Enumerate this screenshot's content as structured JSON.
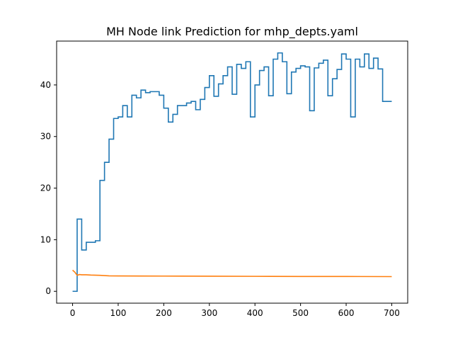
{
  "chart_data": {
    "type": "line",
    "title": "MH Node link Prediction for mhp_depts.yaml",
    "xlabel": "",
    "ylabel": "",
    "xlim": [
      -35,
      735
    ],
    "ylim": [
      -2.3,
      48.5
    ],
    "xticks": [
      0,
      100,
      200,
      300,
      400,
      500,
      600,
      700
    ],
    "yticks": [
      0,
      10,
      20,
      30,
      40
    ],
    "grid": false,
    "legend": "none",
    "series": [
      {
        "color": "#1f77b4",
        "step": "post",
        "x": [
          0,
          8,
          10,
          20,
          30,
          50,
          60,
          70,
          80,
          90,
          100,
          110,
          120,
          130,
          140,
          150,
          160,
          170,
          190,
          200,
          210,
          220,
          230,
          250,
          260,
          270,
          280,
          290,
          300,
          310,
          320,
          330,
          340,
          350,
          360,
          370,
          380,
          390,
          400,
          410,
          420,
          430,
          440,
          450,
          460,
          470,
          480,
          490,
          500,
          510,
          520,
          530,
          540,
          550,
          560,
          570,
          580,
          590,
          600,
          610,
          620,
          630,
          640,
          650,
          660,
          670,
          680,
          690,
          700
        ],
        "y": [
          0,
          0,
          14,
          8,
          9.5,
          9.8,
          21.5,
          25,
          29.5,
          33.5,
          33.8,
          36,
          33.8,
          38,
          37.5,
          39,
          38.5,
          38.7,
          38,
          35.5,
          32.8,
          34.3,
          36,
          36.5,
          36.8,
          35.2,
          37.2,
          39.5,
          41.8,
          37.8,
          40.2,
          41.8,
          43.5,
          38.2,
          44,
          43.2,
          44.5,
          33.8,
          40,
          42.8,
          43.5,
          37.9,
          45,
          46.2,
          44.5,
          38.3,
          42.5,
          43.2,
          43.7,
          43.5,
          35,
          43.3,
          44.2,
          44.8,
          37.9,
          41.2,
          43,
          46,
          45,
          33.8,
          45,
          43.5,
          46,
          43.2,
          45.2,
          43.1,
          36.8,
          36.8,
          36.8
        ]
      },
      {
        "color": "#ff7f0e",
        "step": "none",
        "x": [
          0,
          5,
          10,
          15,
          20,
          30,
          40,
          60,
          80,
          100,
          150,
          200,
          300,
          400,
          500,
          600,
          700
        ],
        "y": [
          4.1,
          3.7,
          3.1,
          3.25,
          3.2,
          3.2,
          3.15,
          3.1,
          3.0,
          2.98,
          2.96,
          2.95,
          2.92,
          2.9,
          2.88,
          2.87,
          2.85
        ]
      }
    ]
  }
}
